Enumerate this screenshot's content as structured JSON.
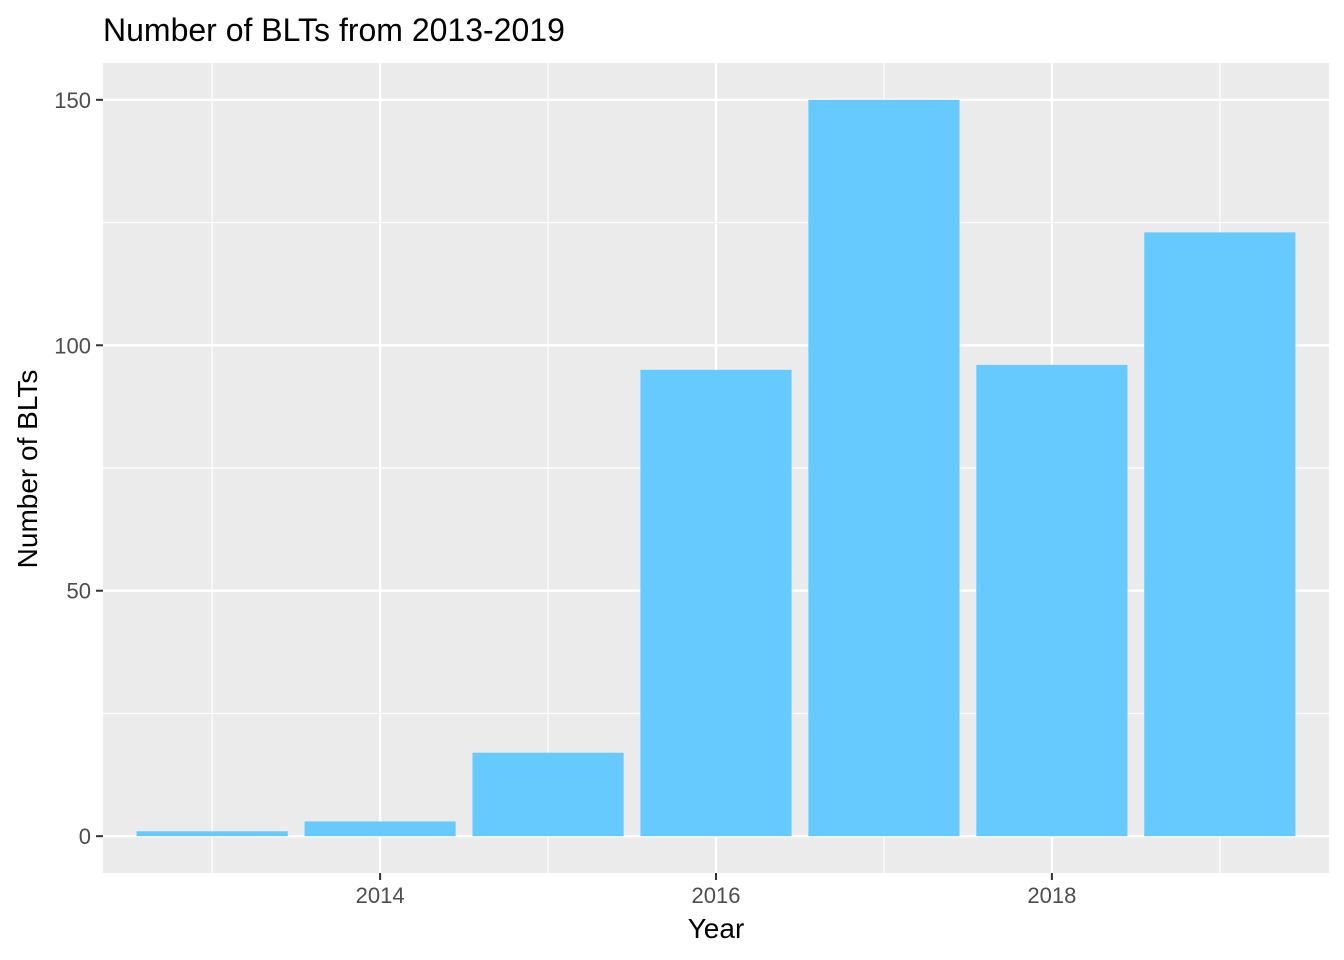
{
  "chart_data": {
    "type": "bar",
    "title": "Number of BLTs from 2013-2019",
    "xlabel": "Year",
    "ylabel": "Number of BLTs",
    "x": [
      2013,
      2014,
      2015,
      2016,
      2017,
      2018,
      2019
    ],
    "values": [
      1,
      3,
      17,
      95,
      150,
      96,
      123
    ],
    "xlim": [
      2012.35,
      2019.65
    ],
    "ylim": [
      -7.5,
      157.5
    ],
    "x_ticks": [
      2014,
      2016,
      2018
    ],
    "x_tick_labels": [
      "2014",
      "2016",
      "2018"
    ],
    "y_ticks": [
      0,
      50,
      100,
      150
    ],
    "y_tick_labels": [
      "0",
      "50",
      "100",
      "150"
    ],
    "bar_width": 0.9,
    "bar_color": "#66CAFF",
    "panel_background": "#EBEBEB",
    "grid": true,
    "legend": "none"
  }
}
